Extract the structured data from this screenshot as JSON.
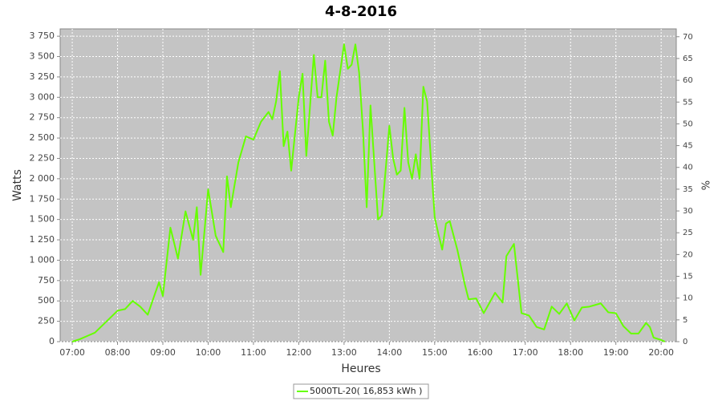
{
  "chart_data": {
    "type": "line",
    "title": "4-8-2016",
    "x_label": "Heures",
    "y_label": "Watts",
    "y2_label": "%",
    "x": [
      "07:00",
      "07:10",
      "07:20",
      "07:30",
      "07:40",
      "07:50",
      "08:00",
      "08:10",
      "08:20",
      "08:30",
      "08:40",
      "08:50",
      "08:55",
      "09:00",
      "09:10",
      "09:20",
      "09:30",
      "09:40",
      "09:45",
      "09:50",
      "10:00",
      "10:10",
      "10:20",
      "10:25",
      "10:30",
      "10:40",
      "10:50",
      "11:00",
      "11:10",
      "11:20",
      "11:25",
      "11:30",
      "11:35",
      "11:40",
      "11:45",
      "11:50",
      "12:00",
      "12:05",
      "12:10",
      "12:20",
      "12:25",
      "12:30",
      "12:35",
      "12:40",
      "12:45",
      "12:50",
      "13:00",
      "13:05",
      "13:10",
      "13:15",
      "13:20",
      "13:25",
      "13:30",
      "13:35",
      "13:40",
      "13:45",
      "13:50",
      "14:00",
      "14:05",
      "14:10",
      "14:15",
      "14:20",
      "14:25",
      "14:30",
      "14:35",
      "14:40",
      "14:45",
      "14:50",
      "15:00",
      "15:05",
      "15:10",
      "15:15",
      "15:20",
      "15:30",
      "15:40",
      "15:45",
      "15:55",
      "16:05",
      "16:20",
      "16:30",
      "16:35",
      "16:45",
      "16:55",
      "17:05",
      "17:15",
      "17:25",
      "17:35",
      "17:45",
      "17:55",
      "18:05",
      "18:15",
      "18:25",
      "18:40",
      "18:50",
      "19:00",
      "19:10",
      "19:20",
      "19:30",
      "19:40",
      "19:45",
      "19:50",
      "20:00",
      "20:05"
    ],
    "series": [
      {
        "name": "5000TL-20( 16,853 kWh )",
        "color": "#66ff00",
        "values": [
          0,
          30,
          70,
          110,
          200,
          290,
          380,
          400,
          500,
          430,
          330,
          600,
          730,
          560,
          1400,
          1020,
          1600,
          1250,
          1650,
          820,
          1870,
          1300,
          1100,
          2030,
          1650,
          2200,
          2520,
          2480,
          2700,
          2820,
          2730,
          2950,
          3320,
          2400,
          2580,
          2100,
          3000,
          3290,
          2280,
          3520,
          3000,
          3000,
          3450,
          2700,
          2530,
          3000,
          3650,
          3350,
          3400,
          3650,
          3300,
          2600,
          1650,
          2900,
          2200,
          1500,
          1550,
          2650,
          2250,
          2050,
          2100,
          2870,
          2200,
          2000,
          2300,
          2000,
          3130,
          2950,
          1530,
          1320,
          1130,
          1450,
          1480,
          1130,
          700,
          520,
          530,
          350,
          600,
          480,
          1050,
          1200,
          350,
          320,
          180,
          150,
          430,
          340,
          470,
          260,
          420,
          430,
          470,
          360,
          350,
          190,
          100,
          100,
          230,
          180,
          50,
          20,
          0
        ]
      }
    ],
    "xlim": [
      "06:44",
      "20:20"
    ],
    "xticks": [
      "07:00",
      "08:00",
      "09:00",
      "10:00",
      "11:00",
      "12:00",
      "13:00",
      "14:00",
      "15:00",
      "16:00",
      "17:00",
      "18:00",
      "19:00",
      "20:00"
    ],
    "ylim": [
      0,
      3840
    ],
    "yticks": [
      0,
      250,
      500,
      750,
      {
        "value": 1000,
        "label": "1 000"
      },
      {
        "value": 1250,
        "label": "1 250"
      },
      {
        "value": 1500,
        "label": "1 500"
      },
      {
        "value": 1750,
        "label": "1 750"
      },
      {
        "value": 2000,
        "label": "2 000"
      },
      {
        "value": 2250,
        "label": "2 250"
      },
      {
        "value": 2500,
        "label": "2 500"
      },
      {
        "value": 2750,
        "label": "2 750"
      },
      {
        "value": 3000,
        "label": "3 000"
      },
      {
        "value": 3250,
        "label": "3 250"
      },
      {
        "value": 3500,
        "label": "3 500"
      },
      {
        "value": 3750,
        "label": "3 750"
      }
    ],
    "y2lim": [
      0,
      71.8
    ],
    "y2ticks": [
      0,
      5,
      10,
      15,
      20,
      25,
      30,
      35,
      40,
      45,
      50,
      55,
      60,
      65,
      70
    ],
    "grid": true,
    "legend": "bottom"
  }
}
